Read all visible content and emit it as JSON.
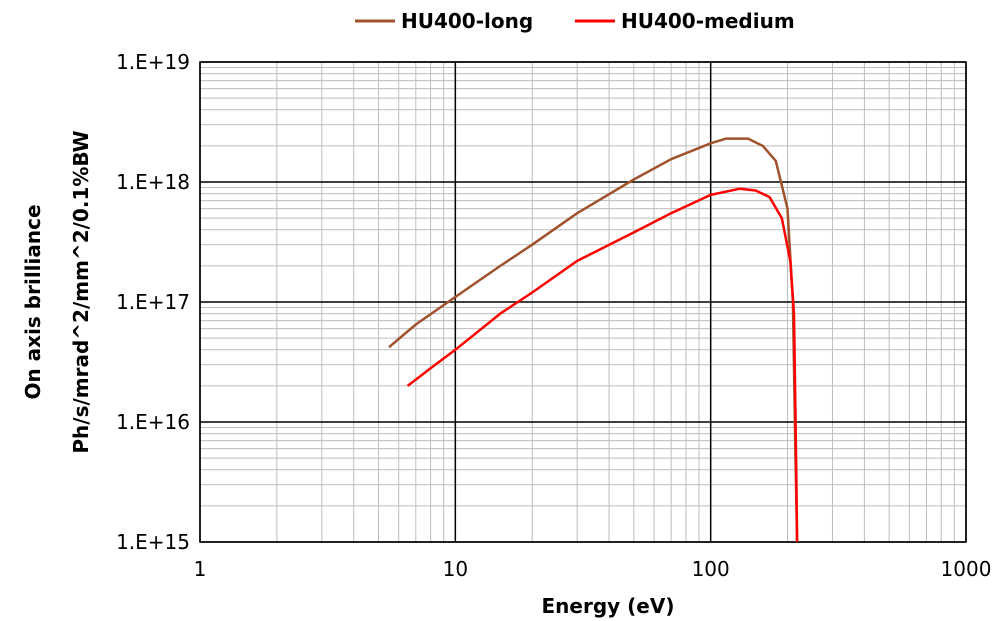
{
  "chart_data": {
    "type": "line",
    "xlabel": "Energy (eV)",
    "ylabel": [
      "On axis brilliance",
      "Ph/s/mrad^2/mm^2/0.1%BW"
    ],
    "x_scale": "log",
    "y_scale": "log",
    "xlim": [
      1,
      1000
    ],
    "ylim": [
      1000000000000000.0,
      1e+19
    ],
    "x_ticks": [
      1,
      10,
      100,
      1000
    ],
    "x_tick_labels": [
      "1",
      "10",
      "100",
      "1000"
    ],
    "y_ticks": [
      1000000000000000.0,
      1e+16,
      1e+17,
      1e+18,
      1e+19
    ],
    "y_tick_labels": [
      "1.E+15",
      "1.E+16",
      "1.E+17",
      "1.E+18",
      "1.E+19"
    ],
    "grid": true,
    "legend_position": "top",
    "series": [
      {
        "name": "HU400-long",
        "color": "#a0522d",
        "x": [
          5.5,
          7,
          10,
          15,
          20,
          30,
          50,
          70,
          100,
          115,
          140,
          160,
          180,
          200,
          210,
          215,
          218
        ],
        "y": [
          4.2e+16,
          6.5e+16,
          1.1e+17,
          2e+17,
          3e+17,
          5.5e+17,
          1.05e+18,
          1.55e+18,
          2.1e+18,
          2.3e+18,
          2.3e+18,
          2e+18,
          1.5e+18,
          6e+17,
          1e+17,
          5000000000000000.0,
          1000000000000000.0
        ]
      },
      {
        "name": "HU400-medium",
        "color": "#ff0000",
        "x": [
          6.5,
          8,
          10,
          15,
          20,
          30,
          50,
          70,
          100,
          130,
          150,
          170,
          190,
          205,
          212,
          216,
          218
        ],
        "y": [
          2e+16,
          2.8e+16,
          4e+16,
          8e+16,
          1.2e+17,
          2.2e+17,
          3.8e+17,
          5.5e+17,
          7.8e+17,
          8.8e+17,
          8.5e+17,
          7.5e+17,
          5e+17,
          2.2e+17,
          8e+16,
          5000000000000000.0,
          1000000000000000.0
        ]
      }
    ]
  }
}
